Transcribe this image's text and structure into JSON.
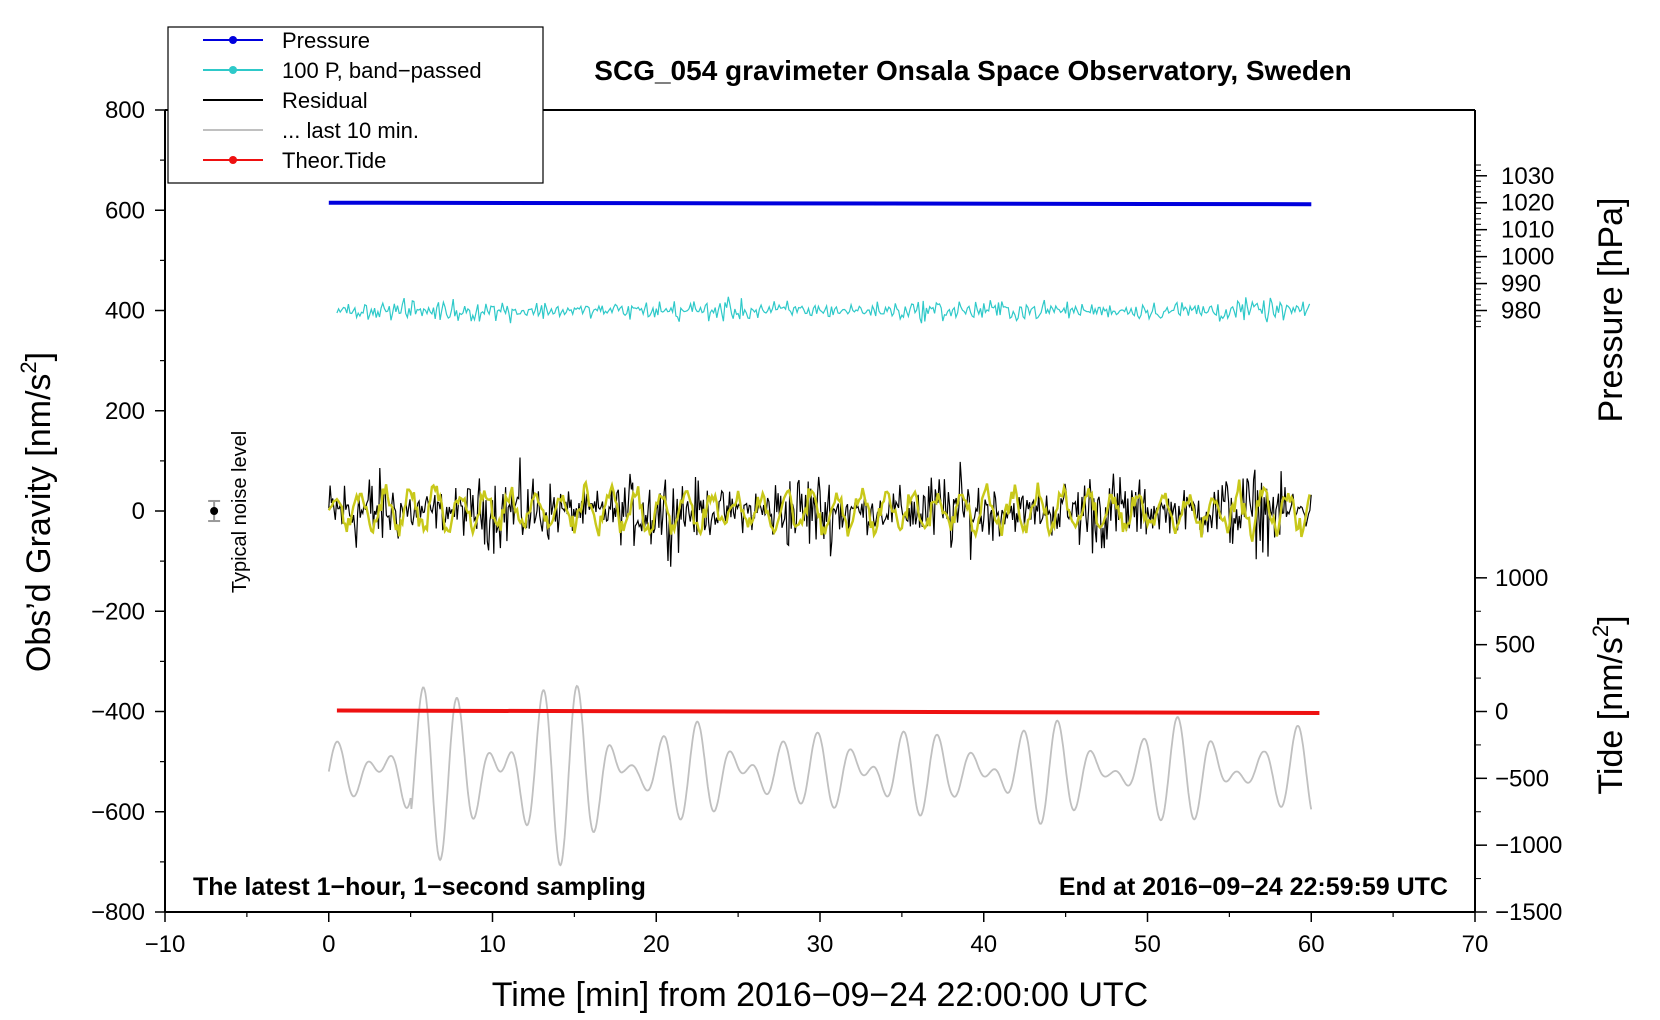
{
  "chart_data": {
    "type": "line",
    "title": "SCG_054 gravimeter Onsala Space Observatory, Sweden",
    "xlabel": "Time [min] from 2016−09−24 22:00:00 UTC",
    "ylabel_left_main": "Obs’d Gravity [nm/s",
    "ylabel_left_sup": "2",
    "ylabel_left_end": "]",
    "ylabel_right_top": "Pressure [hPa]",
    "ylabel_right_bottom_main": "Tide [nm/s",
    "ylabel_right_bottom_sup": "2",
    "ylabel_right_bottom_end": "]",
    "xlim": [
      -10,
      70
    ],
    "ylim": [
      -800,
      800
    ],
    "x_ticks": [
      "−10",
      "0",
      "10",
      "20",
      "30",
      "40",
      "50",
      "60",
      "70"
    ],
    "x_tick_values": [
      -10,
      0,
      10,
      20,
      30,
      40,
      50,
      60,
      70
    ],
    "y_ticks": [
      "800",
      "600",
      "400",
      "200",
      "0",
      "−200",
      "−400",
      "−600",
      "−800"
    ],
    "y_tick_values": [
      800,
      600,
      400,
      200,
      0,
      -200,
      -400,
      -600,
      -800
    ],
    "pressure_axis": {
      "tick_labels": [
        "1030",
        "1020",
        "1010",
        "1000",
        "990",
        "980"
      ],
      "tick_values": [
        1030,
        1020,
        1010,
        1000,
        990,
        980
      ],
      "map": {
        "value_a": 1020,
        "gravity_a": 615,
        "value_b": 980,
        "gravity_b": 400
      }
    },
    "tide_axis": {
      "tick_labels": [
        "1000",
        "500",
        "0",
        "−500",
        "−1000",
        "−1500"
      ],
      "tick_values": [
        1000,
        500,
        0,
        -500,
        -1000,
        -1500
      ],
      "map": {
        "value_a": 0,
        "gravity_a": -400,
        "value_b": -1500,
        "gravity_b": -800
      }
    },
    "annotations": {
      "noise_label": "Typical noise level",
      "bottom_left": "The latest 1−hour, 1−second sampling",
      "bottom_right": "End at 2016−09−24 22:59:59 UTC"
    },
    "noise_bar": {
      "x": -7,
      "y": 0,
      "half_range": 20
    },
    "legend": {
      "placement": "top-left",
      "entries": [
        {
          "label": "Pressure",
          "color": "#0000dd",
          "marker": true
        },
        {
          "label": "100 P, band−passed",
          "color": "#2ec9c9",
          "marker": true
        },
        {
          "label": "Residual",
          "color": "#000000",
          "marker": false
        },
        {
          "label": "... last 10 min.",
          "color": "#c0c0c0",
          "marker": false
        },
        {
          "label": "Theor.Tide",
          "color": "#ee1111",
          "marker": true
        }
      ]
    },
    "series": [
      {
        "name": "Pressure",
        "color": "#0000dd",
        "x_start": 0,
        "x_end": 60,
        "y_start": 615,
        "y_end": 612
      },
      {
        "name": "100 P, band−passed",
        "color": "#2ec9c9",
        "x_start": 0.5,
        "x_end": 60,
        "center": 400,
        "amplitude": 30
      },
      {
        "name": "Residual",
        "color": "#000000",
        "x_start": 0,
        "x_end": 60,
        "center": 0,
        "amplitude": 110
      },
      {
        "name": "Residual (smoothed)",
        "color": "#c8c81a",
        "x_start": 0,
        "x_end": 60,
        "center": 0,
        "amplitude": 55
      },
      {
        "name": "... last 10 min.",
        "color": "#c0c0c0",
        "x_start": 0,
        "x_end": 60,
        "center": -520,
        "amplitude": 110
      },
      {
        "name": "Theor.Tide",
        "color": "#ee1111",
        "x_start": 0.5,
        "x_end": 60.5,
        "y_start": -398,
        "y_end": -403
      }
    ]
  }
}
